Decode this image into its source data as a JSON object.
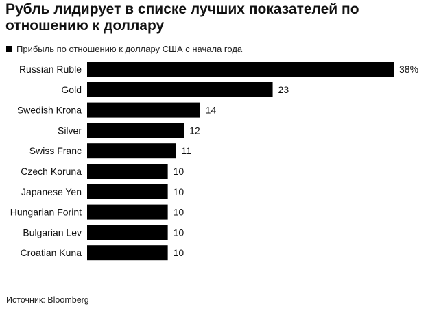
{
  "title": "Рубль лидирует в списке лучших показателей по отношению к доллару",
  "legend": {
    "label": "Прибыль по отношению к доллару США с начала года",
    "color": "#000000"
  },
  "source": "Источник: Bloomberg",
  "chart_data": {
    "type": "bar",
    "orientation": "horizontal",
    "categories": [
      "Russian Ruble",
      "Gold",
      "Swedish Krona",
      "Silver",
      "Swiss Franc",
      "Czech Koruna",
      "Japanese Yen",
      "Hungarian Forint",
      "Bulgarian Lev",
      "Croatian Kuna"
    ],
    "values": [
      38,
      23,
      14,
      12,
      11,
      10,
      10,
      10,
      10,
      10
    ],
    "value_labels": [
      "38%",
      "23",
      "14",
      "12",
      "11",
      "10",
      "10",
      "10",
      "10",
      "10"
    ],
    "series": [
      {
        "name": "Прибыль по отношению к доллару США с начала года",
        "values": [
          38,
          23,
          14,
          12,
          11,
          10,
          10,
          10,
          10,
          10
        ]
      }
    ],
    "xlim": [
      0,
      38
    ],
    "grid": false,
    "bar_color": "#000000",
    "legend_position": "top-left"
  }
}
